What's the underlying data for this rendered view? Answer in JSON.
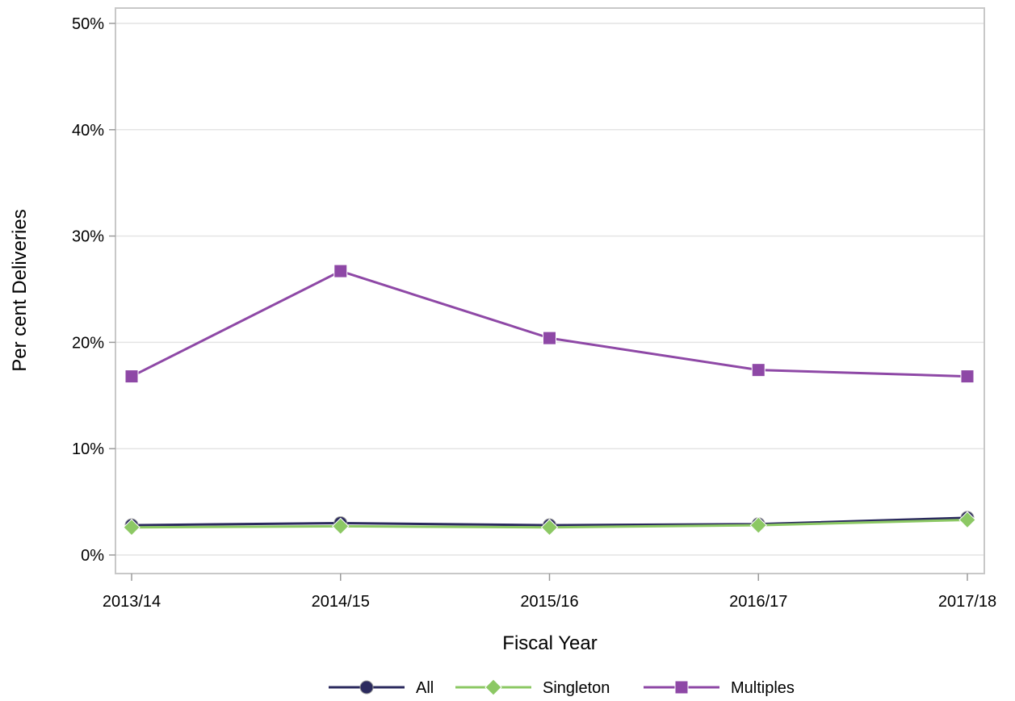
{
  "chart_data": {
    "type": "line",
    "title": "",
    "xlabel": "Fiscal Year",
    "ylabel": "Per cent Deliveries",
    "categories": [
      "2013/14",
      "2014/15",
      "2015/16",
      "2016/17",
      "2017/18"
    ],
    "ylim": [
      0,
      50
    ],
    "yticks": [
      0,
      10,
      20,
      30,
      40,
      50
    ],
    "ytick_labels": [
      "0%",
      "10%",
      "20%",
      "30%",
      "40%",
      "50%"
    ],
    "grid": "horizontal",
    "legend_position": "bottom-center",
    "series": [
      {
        "name": "All",
        "values": [
          2.8,
          3.0,
          2.8,
          2.9,
          3.5
        ],
        "color": "#2b2a5e",
        "marker": "circle"
      },
      {
        "name": "Singleton",
        "values": [
          2.6,
          2.7,
          2.6,
          2.8,
          3.3
        ],
        "color": "#8cc864",
        "marker": "diamond"
      },
      {
        "name": "Multiples",
        "values": [
          16.8,
          26.7,
          20.4,
          17.4,
          16.8
        ],
        "color": "#8e48a6",
        "marker": "square"
      }
    ]
  }
}
